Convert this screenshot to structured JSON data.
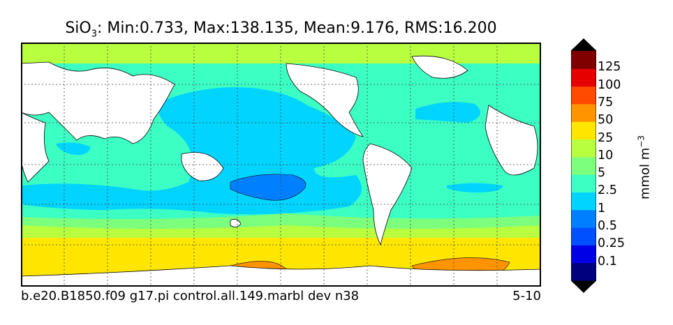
{
  "title": {
    "species": "SiO",
    "subscript": "3",
    "stats": ": Min:0.733, Max:138.135, Mean:9.176, RMS:16.200"
  },
  "caption": {
    "case_name": "b.e20.B1850.f09 g17.pi control.all.149.marbl dev n38",
    "years": "5-10"
  },
  "colorbar": {
    "unit_base": "mmol m",
    "unit_exponent": "−3",
    "ticks": [
      "0.1",
      "0.25",
      "0.5",
      "1",
      "2.5",
      "5",
      "10",
      "25",
      "50",
      "75",
      "100",
      "125"
    ],
    "colors": {
      "under": "#000000",
      "c0": "#00007f",
      "c1": "#0000e6",
      "c2": "#0050ff",
      "c3": "#0080ff",
      "c4": "#00d4ff",
      "c5": "#3bffc3",
      "c6": "#7cff7c",
      "c7": "#b8ff40",
      "c8": "#ffe600",
      "c9": "#ff9400",
      "c10": "#ff4a00",
      "c11": "#e60000",
      "c12": "#800000",
      "over": "#000000"
    }
  },
  "map": {
    "projection": "cylindrical",
    "graticule": "dotted",
    "land_color": "#ffffff"
  }
}
